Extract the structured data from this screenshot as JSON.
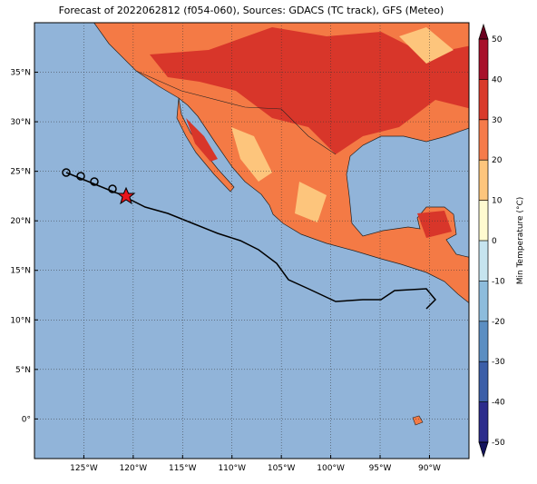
{
  "chart_data": {
    "type": "map",
    "title": "Forecast of 2022062812 (f054-060), Sources: GDACS (TC track), GFS (Meteo)",
    "xlim": [
      -130,
      -86
    ],
    "ylim": [
      -4,
      40
    ],
    "xticks": [
      {
        "value": -125,
        "label": "125°W"
      },
      {
        "value": -120,
        "label": "120°W"
      },
      {
        "value": -115,
        "label": "115°W"
      },
      {
        "value": -110,
        "label": "110°W"
      },
      {
        "value": -105,
        "label": "105°W"
      },
      {
        "value": -100,
        "label": "100°W"
      },
      {
        "value": -95,
        "label": "95°W"
      },
      {
        "value": -90,
        "label": "90°W"
      }
    ],
    "yticks": [
      {
        "value": 0,
        "label": "0°"
      },
      {
        "value": 5,
        "label": "5°N"
      },
      {
        "value": 10,
        "label": "10°N"
      },
      {
        "value": 15,
        "label": "15°N"
      },
      {
        "value": 20,
        "label": "20°N"
      },
      {
        "value": 25,
        "label": "25°N"
      },
      {
        "value": 30,
        "label": "30°N"
      },
      {
        "value": 35,
        "label": "35°N"
      }
    ],
    "grid": true,
    "ocean_color": "#91b4d9",
    "colorbar": {
      "label": "Min Temperature (°C)",
      "lim": [
        -50,
        50
      ],
      "ticks": [
        -50,
        -40,
        -30,
        -20,
        -10,
        0,
        10,
        20,
        30,
        40,
        50
      ],
      "colors": [
        "#2c2c8c",
        "#3b5ea8",
        "#5b8ec2",
        "#8dbcdc",
        "#c6e4ef",
        "#fffbd0",
        "#fdc57c",
        "#f67b4a",
        "#d93a2b",
        "#a8102a"
      ],
      "extend_colors": [
        "#14145e",
        "#6b0020"
      ]
    }
  }
}
